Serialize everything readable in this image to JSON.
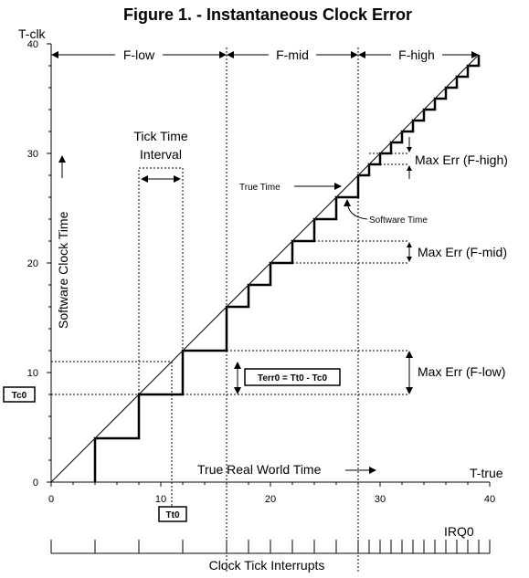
{
  "title": "Figure 1. - Instantaneous Clock Error",
  "y_axis_label": "T-clk",
  "x_axis_label": "T-true",
  "y_title": "Software Clock Time",
  "x_title": "True Real World Time",
  "x_ticks": [
    "0",
    "10",
    "20",
    "30",
    "40"
  ],
  "y_ticks": [
    "0",
    "10",
    "20",
    "30",
    "40"
  ],
  "regions": {
    "low": "F-low",
    "mid": "F-mid",
    "high": "F-high"
  },
  "tick_interval_label_1": "Tick Time",
  "tick_interval_label_2": "Interval",
  "true_time": "True Time",
  "software_time": "Software Time",
  "max_err_high": "Max Err (F-high)",
  "max_err_mid": "Max Err (F-mid)",
  "max_err_low": "Max Err (F-low)",
  "terr_formula": "Terr0 = Tt0 - Tc0",
  "tc0": "Tc0",
  "tt0": "Tt0",
  "irq": "IRQ0",
  "interrupts": "Clock Tick Interrupts",
  "chart_data": {
    "type": "line",
    "xlim": [
      0,
      40
    ],
    "ylim": [
      0,
      40
    ],
    "true_time_line": [
      [
        0,
        0
      ],
      [
        39,
        39
      ]
    ],
    "software_clock_steps": [
      [
        4,
        4
      ],
      [
        8,
        8
      ],
      [
        12,
        12
      ],
      [
        16,
        16
      ],
      [
        18,
        18
      ],
      [
        20,
        20
      ],
      [
        22,
        22
      ],
      [
        24,
        24
      ],
      [
        26,
        26
      ],
      [
        28,
        28
      ],
      [
        29,
        29
      ],
      [
        30,
        30
      ],
      [
        31,
        31
      ],
      [
        32,
        32
      ],
      [
        33,
        33
      ],
      [
        34,
        34
      ],
      [
        35,
        35
      ],
      [
        36,
        36
      ],
      [
        37,
        37
      ],
      [
        38,
        38
      ],
      [
        39,
        39
      ]
    ],
    "region_bounds": [
      0,
      16,
      28,
      39
    ],
    "tt0": 11,
    "tc0": 8
  }
}
